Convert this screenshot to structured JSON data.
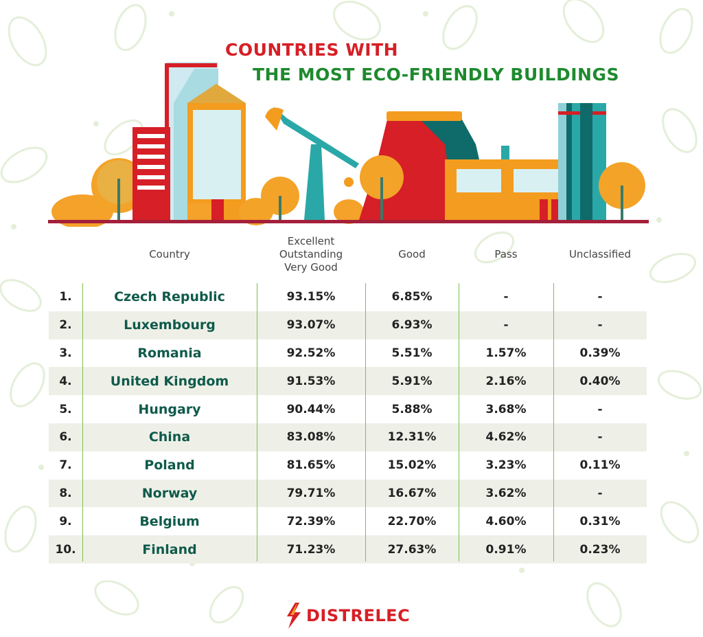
{
  "title_line1": "COUNTRIES WITH",
  "title_line2": "THE MOST ECO-FRIENDLY BUILDINGS",
  "colors": {
    "title_red": "#d61f26",
    "title_green": "#1e8a2e",
    "country_text": "#0f5a4a",
    "divider": "#7cbf4a",
    "row_shade": "#eef0e8"
  },
  "brand": "DISTRELEC",
  "chart_data": {
    "type": "table",
    "columns": [
      "",
      "Country",
      "Excellent\nOutstanding\nVery Good",
      "Good",
      "Pass",
      "Unclassified"
    ],
    "header_lines": [
      "Excellent",
      "Outstanding",
      "Very Good"
    ],
    "rows": [
      {
        "rank": "1.",
        "country": "Czech Republic",
        "excellent": "93.15%",
        "good": "6.85%",
        "pass": "-",
        "unclassified": "-"
      },
      {
        "rank": "2.",
        "country": "Luxembourg",
        "excellent": "93.07%",
        "good": "6.93%",
        "pass": "-",
        "unclassified": "-"
      },
      {
        "rank": "3.",
        "country": "Romania",
        "excellent": "92.52%",
        "good": "5.51%",
        "pass": "1.57%",
        "unclassified": "0.39%"
      },
      {
        "rank": "4.",
        "country": "United Kingdom",
        "excellent": "91.53%",
        "good": "5.91%",
        "pass": "2.16%",
        "unclassified": "0.40%"
      },
      {
        "rank": "5.",
        "country": "Hungary",
        "excellent": "90.44%",
        "good": "5.88%",
        "pass": "3.68%",
        "unclassified": "-"
      },
      {
        "rank": "6.",
        "country": "China",
        "excellent": "83.08%",
        "good": "12.31%",
        "pass": "4.62%",
        "unclassified": "-"
      },
      {
        "rank": "7.",
        "country": "Poland",
        "excellent": "81.65%",
        "good": "15.02%",
        "pass": "3.23%",
        "unclassified": "0.11%"
      },
      {
        "rank": "8.",
        "country": "Norway",
        "excellent": "79.71%",
        "good": "16.67%",
        "pass": "3.62%",
        "unclassified": "-"
      },
      {
        "rank": "9.",
        "country": "Belgium",
        "excellent": "72.39%",
        "good": "22.70%",
        "pass": "4.60%",
        "unclassified": "0.31%"
      },
      {
        "rank": "10.",
        "country": "Finland",
        "excellent": "71.23%",
        "good": "27.63%",
        "pass": "0.91%",
        "unclassified": "0.23%"
      }
    ]
  }
}
